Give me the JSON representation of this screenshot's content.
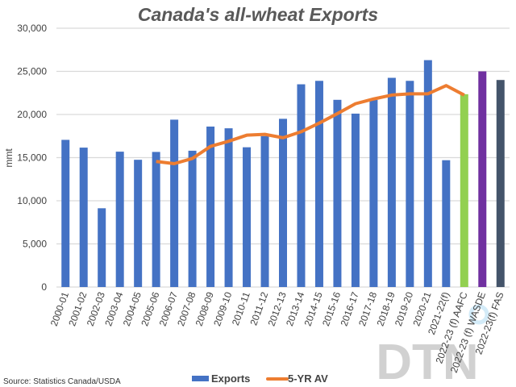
{
  "chart_data": {
    "type": "bar",
    "title": "Canada's all-wheat Exports",
    "xlabel": "",
    "ylabel": "mmt",
    "ylim": [
      0,
      30000
    ],
    "yticks": [
      "0",
      "5,000",
      "10,000",
      "15,000",
      "20,000",
      "25,000",
      "30,000"
    ],
    "ytick_values": [
      0,
      5000,
      10000,
      15000,
      20000,
      25000,
      30000
    ],
    "grid": true,
    "legend_position": "bottom",
    "categories": [
      "2000-01",
      "2001-02",
      "2002-03",
      "2003-04",
      "2004-05",
      "2005-06",
      "2006-07",
      "2007-08",
      "2008-09",
      "2009-10",
      "2010-11",
      "2011-12",
      "2012-13",
      "2013-14",
      "2014-15",
      "2015-16",
      "2016-17",
      "2017-18",
      "2018-19",
      "2019-20",
      "2020-21",
      "2021-22(f)",
      "2022-23 (f) AAFC",
      "2022-23 (f) WASDE",
      "2022-23(f) FAS"
    ],
    "series": [
      {
        "name": "Exports",
        "type": "bar",
        "color": "#4472C4",
        "point_colors": {
          "22": "#92D050",
          "23": "#7030A0",
          "24": "#44546A"
        },
        "values": [
          17060,
          16160,
          9130,
          15690,
          14750,
          15660,
          19400,
          15800,
          18600,
          18400,
          16200,
          17500,
          19500,
          23500,
          23900,
          21700,
          20100,
          21700,
          24250,
          23900,
          26300,
          14700,
          22350,
          25000,
          24000
        ]
      },
      {
        "name": "5-YR AV",
        "type": "line",
        "color": "#ED7D31",
        "values": [
          null,
          null,
          null,
          null,
          null,
          14560,
          14300,
          14900,
          16300,
          16900,
          17600,
          17700,
          17300,
          18000,
          19000,
          20100,
          21250,
          21800,
          22250,
          22400,
          22400,
          23350,
          22250,
          null,
          null
        ]
      }
    ],
    "source": "Source: Statistics Canada/USDA",
    "watermark": "DTN"
  }
}
